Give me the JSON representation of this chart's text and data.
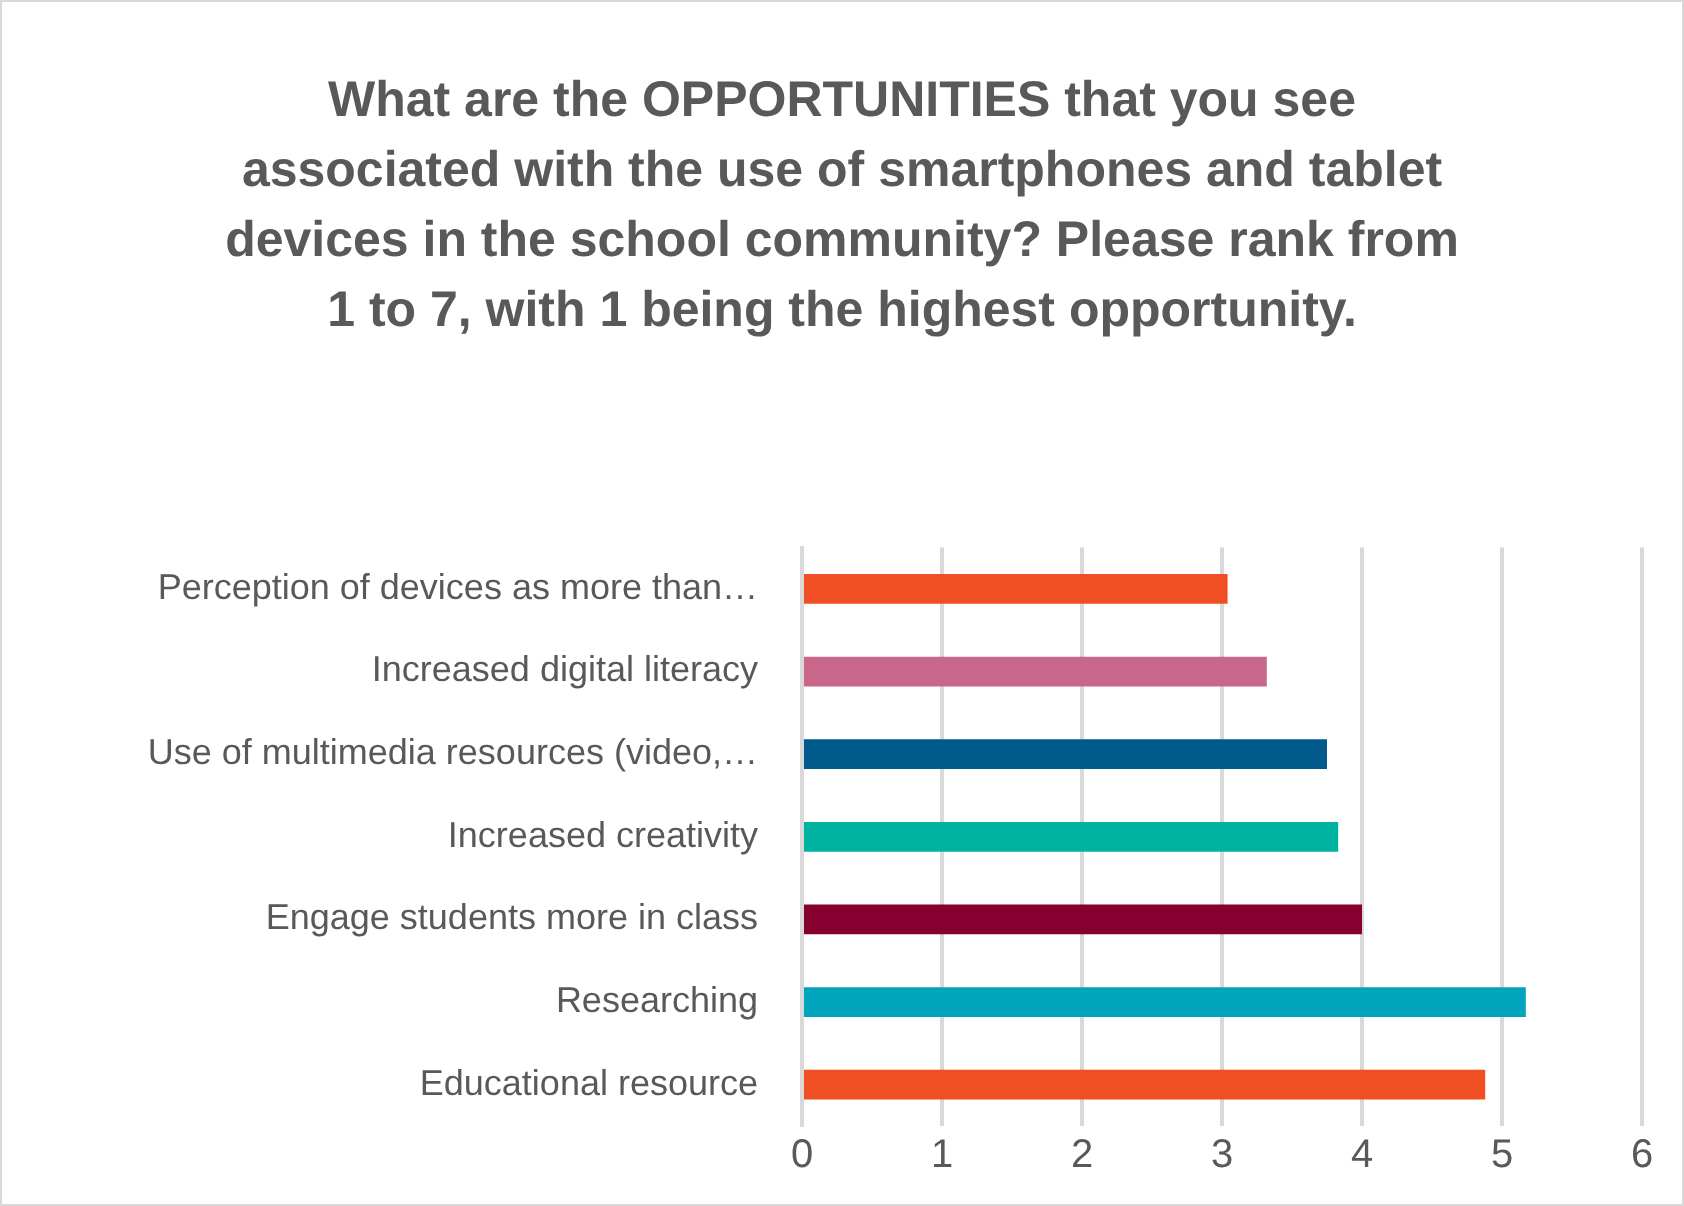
{
  "chart_data": {
    "type": "bar",
    "orientation": "horizontal",
    "title": "What are the OPPORTUNITIES that you see associated with the use of smartphones and tablet devices in the school community? Please rank from 1 to 7, with 1 being the highest opportunity.",
    "categories": [
      "Perception of devices as more than…",
      "Increased digital literacy",
      "Use of multimedia resources (video,…",
      "Increased creativity",
      "Engage students more in class",
      "Researching",
      "Educational resource"
    ],
    "values": [
      3.04,
      3.32,
      3.75,
      3.83,
      4.0,
      5.17,
      4.88
    ],
    "colors": [
      "#f04e23",
      "#c9678a",
      "#005a8c",
      "#00b2a0",
      "#85002f",
      "#00a5bc",
      "#f04e23"
    ],
    "xlim": [
      0,
      6
    ],
    "xticks": [
      0,
      1,
      2,
      3,
      4,
      5,
      6
    ],
    "grid": "x",
    "legend": false
  }
}
